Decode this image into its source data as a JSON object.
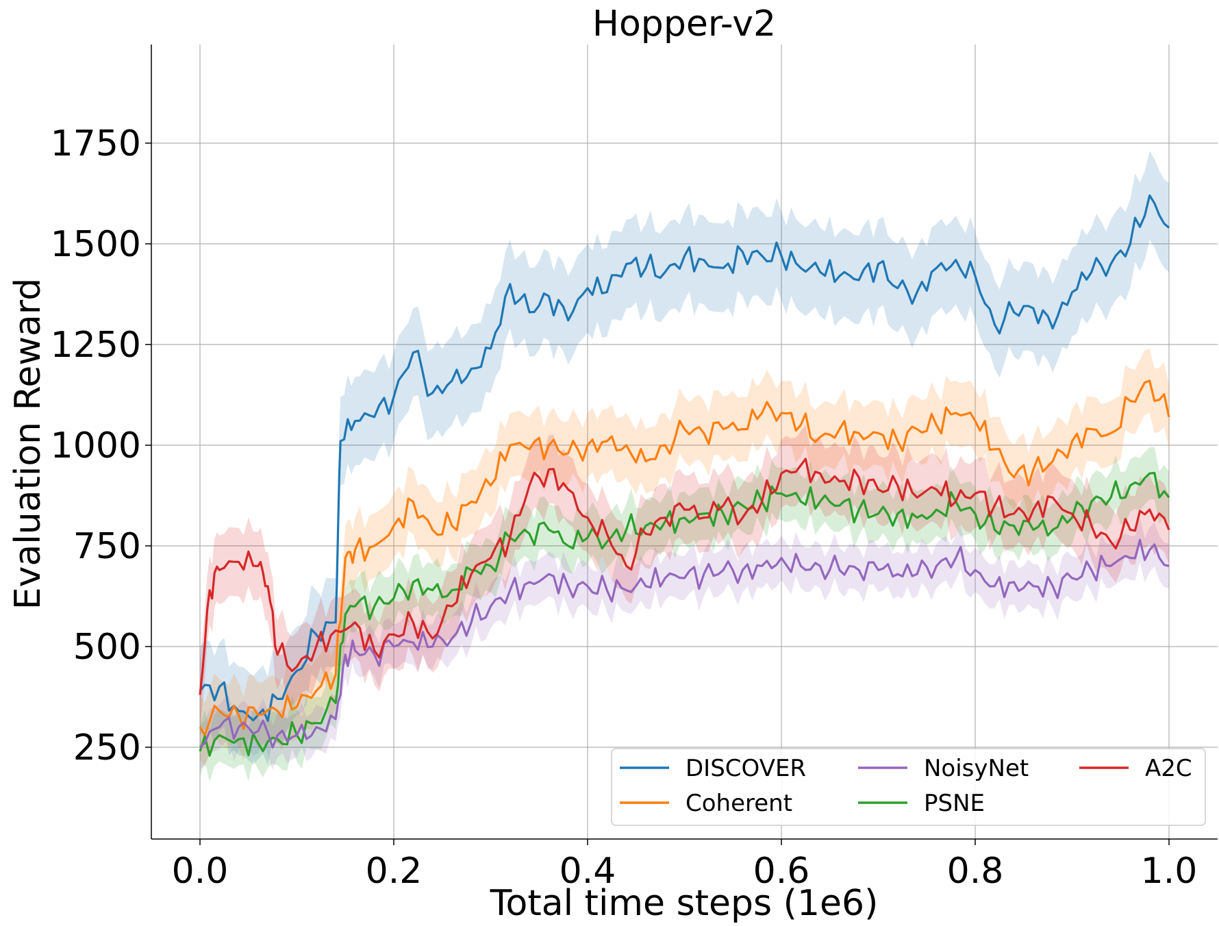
{
  "chart_data": {
    "type": "line",
    "title": "Hopper-v2",
    "xlabel": "Total time steps (1e6)",
    "ylabel": "Evaluation Reward",
    "xlim": [
      -0.05,
      1.05
    ],
    "ylim": [
      30,
      2000
    ],
    "xticks": [
      "0.0",
      "0.2",
      "0.4",
      "0.6",
      "0.8",
      "1.0"
    ],
    "xtick_values": [
      0.0,
      0.2,
      0.4,
      0.6,
      0.8,
      1.0
    ],
    "yticks": [
      "250",
      "500",
      "750",
      "1000",
      "1250",
      "1500",
      "1750"
    ],
    "ytick_values": [
      250,
      500,
      750,
      1000,
      1250,
      1500,
      1750
    ],
    "grid": true,
    "legend_position": "lower-right",
    "legend_columns": 3,
    "series": [
      {
        "name": "DISCOVER",
        "color": "#1f77b4",
        "band": 110,
        "x": [
          0.0,
          0.02,
          0.04,
          0.06,
          0.08,
          0.1,
          0.12,
          0.14,
          0.145,
          0.16,
          0.18,
          0.2,
          0.22,
          0.24,
          0.26,
          0.28,
          0.3,
          0.32,
          0.34,
          0.36,
          0.38,
          0.4,
          0.42,
          0.44,
          0.46,
          0.48,
          0.5,
          0.52,
          0.54,
          0.56,
          0.58,
          0.6,
          0.62,
          0.64,
          0.66,
          0.68,
          0.7,
          0.72,
          0.74,
          0.76,
          0.78,
          0.8,
          0.82,
          0.84,
          0.86,
          0.88,
          0.9,
          0.92,
          0.94,
          0.96,
          0.98,
          1.0
        ],
        "y": [
          390,
          400,
          340,
          330,
          370,
          440,
          530,
          560,
          1010,
          1060,
          1070,
          1120,
          1230,
          1130,
          1160,
          1190,
          1240,
          1400,
          1330,
          1370,
          1310,
          1390,
          1380,
          1450,
          1440,
          1430,
          1470,
          1460,
          1440,
          1480,
          1470,
          1470,
          1440,
          1430,
          1420,
          1410,
          1450,
          1390,
          1380,
          1440,
          1460,
          1420,
          1300,
          1330,
          1340,
          1290,
          1380,
          1430,
          1450,
          1500,
          1620,
          1540
        ]
      },
      {
        "name": "Coherent",
        "color": "#ff7f0e",
        "band": 80,
        "x": [
          0.0,
          0.02,
          0.04,
          0.06,
          0.08,
          0.1,
          0.12,
          0.14,
          0.15,
          0.16,
          0.18,
          0.2,
          0.22,
          0.24,
          0.26,
          0.28,
          0.3,
          0.32,
          0.34,
          0.36,
          0.38,
          0.4,
          0.42,
          0.44,
          0.46,
          0.48,
          0.5,
          0.52,
          0.54,
          0.56,
          0.58,
          0.6,
          0.62,
          0.64,
          0.66,
          0.68,
          0.7,
          0.72,
          0.74,
          0.76,
          0.78,
          0.8,
          0.82,
          0.84,
          0.86,
          0.88,
          0.9,
          0.92,
          0.94,
          0.96,
          0.98,
          1.0
        ],
        "y": [
          300,
          340,
          330,
          330,
          340,
          350,
          390,
          430,
          720,
          740,
          750,
          800,
          860,
          790,
          800,
          860,
          900,
          1000,
          990,
          1000,
          980,
          1000,
          1010,
          1000,
          960,
          1000,
          1040,
          1030,
          1040,
          1040,
          1080,
          1080,
          1050,
          1020,
          1040,
          1030,
          1030,
          1010,
          1040,
          1050,
          1080,
          1060,
          990,
          920,
          940,
          960,
          1010,
          1040,
          1030,
          1110,
          1160,
          1070
        ]
      },
      {
        "name": "NoisyNet",
        "color": "#9467bd",
        "band": 55,
        "x": [
          0.0,
          0.02,
          0.04,
          0.06,
          0.08,
          0.1,
          0.12,
          0.14,
          0.15,
          0.16,
          0.18,
          0.2,
          0.22,
          0.24,
          0.26,
          0.28,
          0.3,
          0.32,
          0.34,
          0.36,
          0.38,
          0.4,
          0.42,
          0.44,
          0.46,
          0.48,
          0.5,
          0.52,
          0.54,
          0.56,
          0.58,
          0.6,
          0.62,
          0.64,
          0.66,
          0.68,
          0.7,
          0.72,
          0.74,
          0.76,
          0.78,
          0.8,
          0.82,
          0.84,
          0.86,
          0.88,
          0.9,
          0.92,
          0.94,
          0.96,
          0.98,
          1.0
        ],
        "y": [
          250,
          300,
          300,
          290,
          280,
          280,
          300,
          320,
          480,
          490,
          480,
          500,
          510,
          500,
          520,
          560,
          600,
          640,
          660,
          680,
          650,
          650,
          640,
          640,
          650,
          670,
          670,
          680,
          690,
          690,
          700,
          720,
          700,
          700,
          690,
          690,
          690,
          680,
          680,
          700,
          720,
          690,
          650,
          660,
          650,
          650,
          670,
          690,
          700,
          720,
          740,
          700
        ]
      },
      {
        "name": "PSNE",
        "color": "#2ca02c",
        "band": 65,
        "x": [
          0.0,
          0.02,
          0.04,
          0.06,
          0.08,
          0.1,
          0.12,
          0.14,
          0.15,
          0.16,
          0.18,
          0.2,
          0.22,
          0.24,
          0.26,
          0.28,
          0.3,
          0.32,
          0.34,
          0.36,
          0.38,
          0.4,
          0.42,
          0.44,
          0.46,
          0.48,
          0.5,
          0.52,
          0.54,
          0.56,
          0.58,
          0.6,
          0.62,
          0.64,
          0.66,
          0.68,
          0.7,
          0.72,
          0.74,
          0.76,
          0.78,
          0.8,
          0.82,
          0.84,
          0.86,
          0.88,
          0.9,
          0.92,
          0.94,
          0.96,
          0.98,
          1.0
        ],
        "y": [
          240,
          280,
          270,
          260,
          270,
          280,
          310,
          360,
          580,
          600,
          600,
          620,
          660,
          640,
          640,
          690,
          700,
          770,
          780,
          790,
          750,
          770,
          760,
          790,
          800,
          810,
          820,
          830,
          830,
          850,
          860,
          880,
          860,
          860,
          850,
          840,
          830,
          830,
          820,
          840,
          860,
          830,
          790,
          800,
          790,
          790,
          820,
          860,
          870,
          900,
          930,
          870
        ]
      },
      {
        "name": "A2C",
        "color": "#d62728",
        "band": 85,
        "x": [
          0.0,
          0.01,
          0.02,
          0.04,
          0.06,
          0.07,
          0.08,
          0.1,
          0.12,
          0.14,
          0.16,
          0.18,
          0.2,
          0.22,
          0.24,
          0.26,
          0.28,
          0.3,
          0.32,
          0.34,
          0.36,
          0.38,
          0.4,
          0.42,
          0.44,
          0.46,
          0.48,
          0.5,
          0.52,
          0.54,
          0.56,
          0.58,
          0.6,
          0.62,
          0.64,
          0.66,
          0.68,
          0.7,
          0.72,
          0.74,
          0.76,
          0.78,
          0.8,
          0.82,
          0.84,
          0.86,
          0.88,
          0.9,
          0.92,
          0.94,
          0.96,
          0.98,
          1.0
        ],
        "y": [
          380,
          640,
          690,
          710,
          700,
          650,
          480,
          450,
          500,
          540,
          560,
          490,
          530,
          560,
          520,
          600,
          680,
          720,
          770,
          900,
          940,
          890,
          820,
          780,
          700,
          780,
          820,
          840,
          820,
          850,
          820,
          860,
          930,
          950,
          930,
          910,
          920,
          890,
          900,
          870,
          890,
          860,
          880,
          850,
          830,
          840,
          870,
          830,
          800,
          760,
          790,
          840,
          790
        ]
      }
    ]
  }
}
